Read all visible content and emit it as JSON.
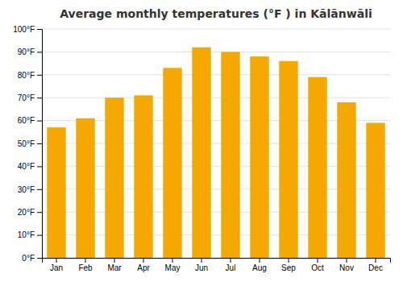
{
  "chart_data": {
    "type": "bar",
    "title": "Average monthly temperatures (°F ) in Kālānwāli",
    "categories": [
      "Jan",
      "Feb",
      "Mar",
      "Apr",
      "May",
      "Jun",
      "Jul",
      "Aug",
      "Sep",
      "Oct",
      "Nov",
      "Dec"
    ],
    "values": [
      57,
      61,
      70,
      71,
      83,
      92,
      90,
      88,
      86,
      79,
      68,
      59
    ],
    "color": "#F5A800",
    "ylim": [
      0,
      100
    ],
    "yticks": [
      {
        "value": 0,
        "label": "0°F"
      },
      {
        "value": 10,
        "label": "10°F"
      },
      {
        "value": 20,
        "label": "20°F"
      },
      {
        "value": 30,
        "label": "30°F"
      },
      {
        "value": 40,
        "label": "40°F"
      },
      {
        "value": 50,
        "label": "50°F"
      },
      {
        "value": 60,
        "label": "60°F"
      },
      {
        "value": 70,
        "label": "70°F"
      },
      {
        "value": 80,
        "label": "80°F"
      },
      {
        "value": 90,
        "label": "90°F"
      },
      {
        "value": 100,
        "label": "100°F"
      }
    ],
    "grid": true
  }
}
